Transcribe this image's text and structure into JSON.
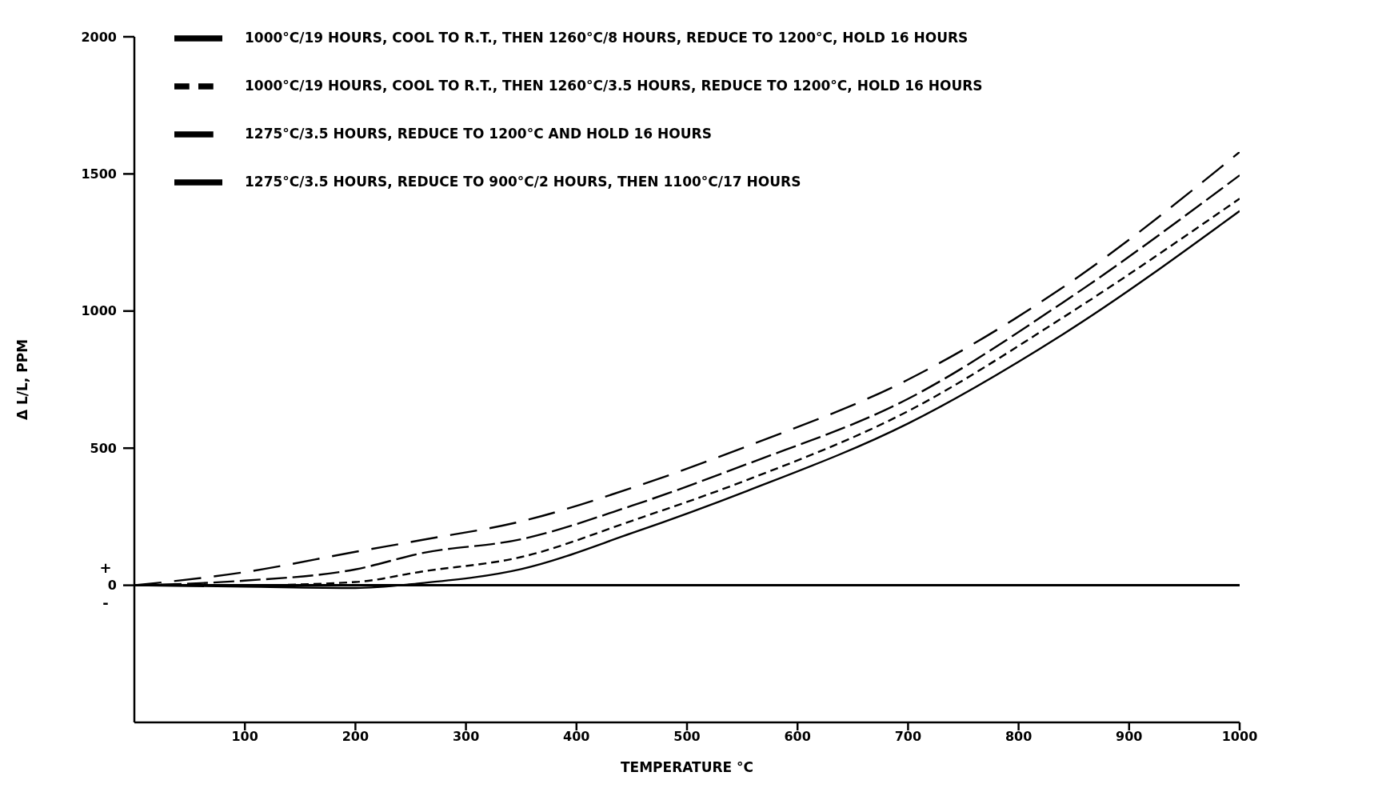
{
  "chart_data": {
    "type": "line",
    "xlabel": "TEMPERATURE °C",
    "ylabel": "Δ L/L, PPM",
    "xlim": [
      0,
      1000
    ],
    "xticks": [
      100,
      200,
      300,
      400,
      500,
      600,
      700,
      800,
      900,
      1000
    ],
    "ylim": [
      -500,
      2000
    ],
    "yticks": [
      0,
      500,
      1000,
      1500,
      2000
    ],
    "x": [
      0,
      100,
      200,
      260,
      350,
      450,
      555,
      700,
      840,
      1000
    ],
    "series": [
      {
        "name": "1000°C/19 HOURS, COOL TO R.T., THEN 1260°C/8 HOURS, REDUCE TO 1200°C, HOLD 16 HOURS",
        "color": "#000000",
        "line_style": "solid",
        "values": [
          0,
          -5,
          -10,
          8,
          59,
          190,
          345,
          590,
          915,
          1365
        ]
      },
      {
        "name": "1000°C/19 HOURS, COOL TO R.T., THEN 1260°C/3.5 HOURS, REDUCE TO 1200°C, HOLD 16 HOURS",
        "color": "#000000",
        "line_style": "dashed",
        "values": [
          0,
          0,
          12,
          50,
          103,
          235,
          385,
          635,
          976,
          1410
        ]
      },
      {
        "name": "1275°C/3.5 HOURS, REDUCE TO 1200°C AND HOLD 16 HOURS",
        "color": "#000000",
        "line_style": "dashed",
        "values": [
          0,
          17,
          58,
          117,
          168,
          290,
          443,
          680,
          1031,
          1495
        ]
      },
      {
        "name": "1275°C/3.5 HOURS, REDUCE TO 900°C/2 HOURS, THEN 1100°C/17 HOURS",
        "color": "#000000",
        "line_style": "dashed",
        "values": [
          0,
          48,
          122,
          165,
          233,
          355,
          508,
          750,
          1086,
          1580
        ]
      }
    ],
    "ref_lines": [
      {
        "axis": "y",
        "value": 0,
        "color": "#000000",
        "line_style": "solid"
      }
    ],
    "annotations": [
      "+",
      "-"
    ],
    "marker": "none",
    "grid": false,
    "legend": "top"
  }
}
